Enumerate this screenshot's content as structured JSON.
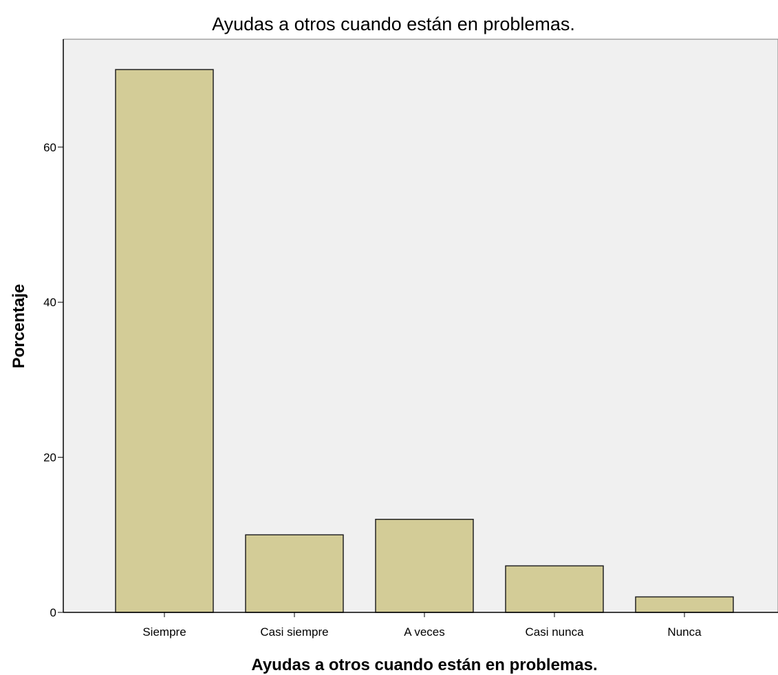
{
  "chart_data": {
    "type": "bar",
    "title": "Ayudas a otros cuando están en problemas.",
    "xlabel": "Ayudas a otros cuando están en problemas.",
    "ylabel": "Porcentaje",
    "categories": [
      "Siempre",
      "Casi siempre",
      "A veces",
      "Casi nunca",
      "Nunca"
    ],
    "values": [
      70,
      10,
      12,
      6,
      2
    ],
    "ylim": [
      0,
      75
    ],
    "yticks": [
      0,
      20,
      40,
      60
    ],
    "grid": false,
    "colors": {
      "bar_fill": "#D3CC97",
      "bar_stroke": "#222222",
      "plot_background": "#F0F0F0",
      "axis": "#000000"
    }
  }
}
